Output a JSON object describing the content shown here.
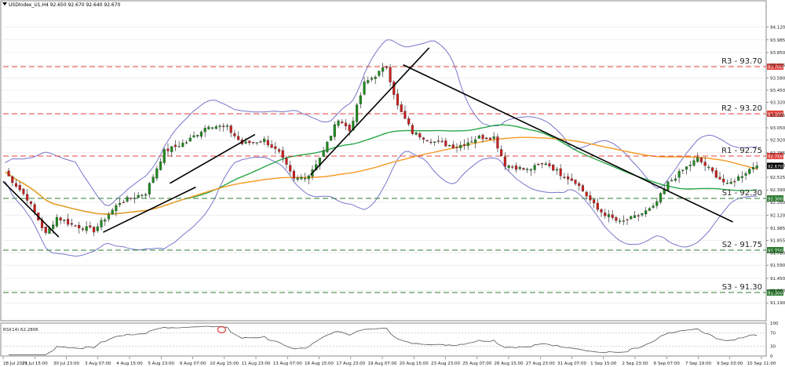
{
  "header": {
    "symbol_info": "USDIndex_U1,H4  92.650 92.670 92.640 92.670"
  },
  "colors": {
    "candle_up": "#1e8a1e",
    "candle_down": "#c81e1e",
    "bollinger": "#7777cc",
    "ma_green": "#2aa84a",
    "ma_orange": "#f59a23",
    "resistance": "#e0433d",
    "support": "#2e7d32",
    "trendline": "#000000",
    "grid": "#e6e6e6"
  },
  "chart_data": {
    "type": "candlestick",
    "price_axis": {
      "min": 91.0,
      "max": 94.4,
      "ticks": [
        "94.120",
        "93.985",
        "93.850",
        "93.715",
        "93.580",
        "93.450",
        "93.320",
        "93.185",
        "93.050",
        "92.920",
        "92.785",
        "92.650",
        "92.525",
        "92.390",
        "92.260",
        "92.120",
        "91.985",
        "91.855",
        "91.720",
        "91.590",
        "91.450",
        "91.320",
        "91.190"
      ],
      "current_price_tag": "92.670"
    },
    "time_axis": [
      "28 Jul 2021",
      "29 Jul 15:00",
      "30 Jul 23:00",
      "3 Aug 07:00",
      "4 Aug 15:00",
      "5 Aug 23:00",
      "9 Aug 07:00",
      "10 Aug 15:00",
      "11 Aug 23:00",
      "13 Aug 07:00",
      "16 Aug 15:00",
      "17 Aug 23:00",
      "19 Aug 07:00",
      "20 Aug 15:00",
      "23 Aug 23:00",
      "25 Aug 07:00",
      "26 Aug 15:00",
      "27 Aug 23:00",
      "31 Aug 07:00",
      "1 Sep 15:00",
      "2 Sep 23:00",
      "6 Sep 07:00",
      "7 Sep 19:00",
      "9 Sep 03:00",
      "10 Sep 11:00"
    ],
    "levels": [
      {
        "name": "R3",
        "label": "R3 - 93.70",
        "value": 93.7,
        "tag": "93.700",
        "kind": "resistance"
      },
      {
        "name": "R2",
        "label": "R2 - 93.20",
        "value": 93.2,
        "tag": "93.200",
        "kind": "resistance"
      },
      {
        "name": "R1",
        "label": "R1 - 92.75",
        "value": 92.75,
        "tag": "92.750",
        "kind": "resistance"
      },
      {
        "name": "S1",
        "label": "S1 - 92.30",
        "value": 92.3,
        "tag": "92.300",
        "kind": "support"
      },
      {
        "name": "S2",
        "label": "S2 - 91.75",
        "value": 91.75,
        "tag": "91.750",
        "kind": "support"
      },
      {
        "name": "S3",
        "label": "S3 - 91.30",
        "value": 91.3,
        "tag": "91.300",
        "kind": "support"
      }
    ],
    "close_path": [
      {
        "t": 0,
        "p": 92.58
      },
      {
        "t": 6,
        "p": 92.3
      },
      {
        "t": 11,
        "p": 91.92
      },
      {
        "t": 14,
        "p": 92.1
      },
      {
        "t": 18,
        "p": 92.02
      },
      {
        "t": 24,
        "p": 91.96
      },
      {
        "t": 31,
        "p": 92.26
      },
      {
        "t": 38,
        "p": 92.36
      },
      {
        "t": 43,
        "p": 92.8
      },
      {
        "t": 49,
        "p": 92.9
      },
      {
        "t": 55,
        "p": 93.08
      },
      {
        "t": 60,
        "p": 93.05
      },
      {
        "t": 64,
        "p": 92.88
      },
      {
        "t": 70,
        "p": 92.92
      },
      {
        "t": 74,
        "p": 92.78
      },
      {
        "t": 78,
        "p": 92.5
      },
      {
        "t": 82,
        "p": 92.55
      },
      {
        "t": 86,
        "p": 92.8
      },
      {
        "t": 90,
        "p": 93.15
      },
      {
        "t": 93,
        "p": 93.02
      },
      {
        "t": 97,
        "p": 93.52
      },
      {
        "t": 103,
        "p": 93.7
      },
      {
        "t": 106,
        "p": 93.28
      },
      {
        "t": 110,
        "p": 93.0
      },
      {
        "t": 116,
        "p": 92.9
      },
      {
        "t": 122,
        "p": 92.85
      },
      {
        "t": 128,
        "p": 92.95
      },
      {
        "t": 132,
        "p": 92.95
      },
      {
        "t": 135,
        "p": 92.66
      },
      {
        "t": 141,
        "p": 92.6
      },
      {
        "t": 146,
        "p": 92.68
      },
      {
        "t": 150,
        "p": 92.56
      },
      {
        "t": 154,
        "p": 92.48
      },
      {
        "t": 160,
        "p": 92.18
      },
      {
        "t": 166,
        "p": 92.04
      },
      {
        "t": 170,
        "p": 92.1
      },
      {
        "t": 175,
        "p": 92.2
      },
      {
        "t": 179,
        "p": 92.46
      },
      {
        "t": 183,
        "p": 92.6
      },
      {
        "t": 187,
        "p": 92.72
      },
      {
        "t": 191,
        "p": 92.58
      },
      {
        "t": 195,
        "p": 92.44
      },
      {
        "t": 199,
        "p": 92.55
      },
      {
        "t": 203,
        "p": 92.67
      }
    ],
    "trendlines": [
      {
        "p1": {
          "t": 0,
          "p": 92.48
        },
        "p2": {
          "t": 15,
          "p": 91.89
        }
      },
      {
        "p1": {
          "t": 27,
          "p": 91.94
        },
        "p2": {
          "t": 52,
          "p": 92.42
        }
      },
      {
        "p1": {
          "t": 45,
          "p": 92.46
        },
        "p2": {
          "t": 68,
          "p": 92.98
        }
      },
      {
        "p1": {
          "t": 83,
          "p": 92.55
        },
        "p2": {
          "t": 115,
          "p": 93.9
        }
      },
      {
        "p1": {
          "t": 108,
          "p": 93.72
        },
        "p2": {
          "t": 197,
          "p": 92.05
        }
      }
    ],
    "rsi": {
      "label": "RSI(14) 62.2806",
      "levels": [
        "100",
        "70",
        "30",
        "0"
      ],
      "last": 62.2806,
      "highlight_label": "RSI overbought circle"
    }
  }
}
